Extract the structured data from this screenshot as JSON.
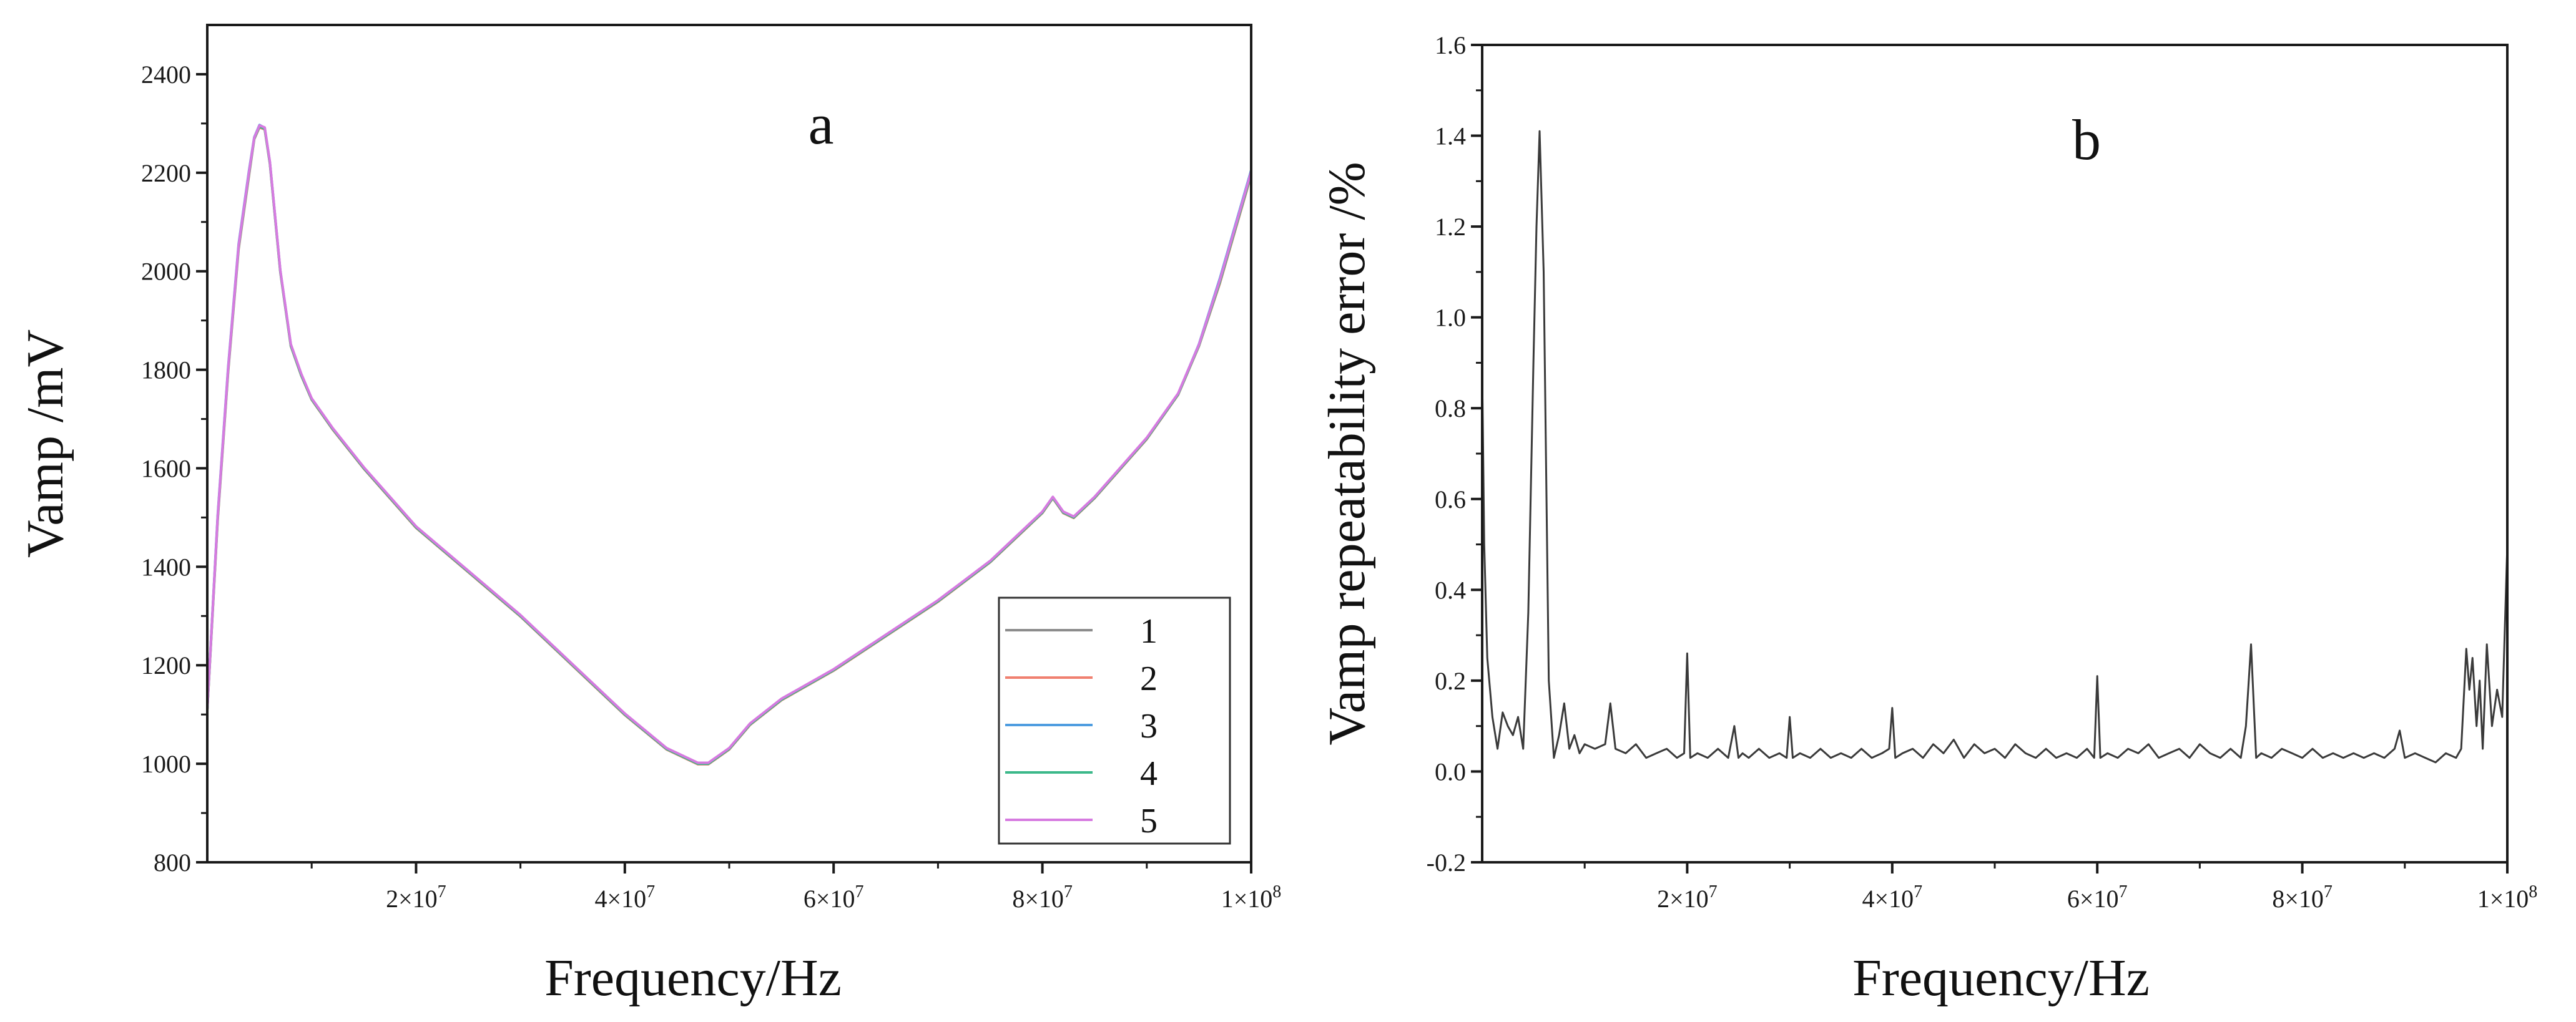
{
  "chart_data": [
    {
      "type": "line",
      "panel_label": "a",
      "title": "",
      "xlabel": "Frequency/Hz",
      "ylabel": "Vamp /mV",
      "xlim": [
        0,
        100000000
      ],
      "ylim": [
        800,
        2500
      ],
      "x_ticks": [
        {
          "value": 20000000,
          "mant": "2×10",
          "exp": "7"
        },
        {
          "value": 40000000,
          "mant": "4×10",
          "exp": "7"
        },
        {
          "value": 60000000,
          "mant": "6×10",
          "exp": "7"
        },
        {
          "value": 80000000,
          "mant": "8×10",
          "exp": "7"
        },
        {
          "value": 100000000,
          "mant": "1×10",
          "exp": "8"
        }
      ],
      "y_ticks": [
        {
          "value": 800,
          "label": "800"
        },
        {
          "value": 1000,
          "label": "1000"
        },
        {
          "value": 1200,
          "label": "1200"
        },
        {
          "value": 1400,
          "label": "1400"
        },
        {
          "value": 1600,
          "label": "1600"
        },
        {
          "value": 1800,
          "label": "1800"
        },
        {
          "value": 2000,
          "label": "2000"
        },
        {
          "value": 2200,
          "label": "2200"
        },
        {
          "value": 2400,
          "label": "2400"
        }
      ],
      "legend_position": "bottom-right",
      "x": [
        0,
        1000000,
        2000000,
        3000000,
        4000000,
        4500000,
        5000000,
        5500000,
        6000000,
        7000000,
        8000000,
        9000000,
        10000000,
        12000000,
        15000000,
        20000000,
        25000000,
        30000000,
        35000000,
        40000000,
        44000000,
        47000000,
        48000000,
        50000000,
        52000000,
        55000000,
        60000000,
        65000000,
        70000000,
        75000000,
        78000000,
        80000000,
        81000000,
        82000000,
        83000000,
        85000000,
        90000000,
        93000000,
        95000000,
        97000000,
        100000000
      ],
      "series": [
        {
          "name": "1",
          "color": "#8c8c8c",
          "values": [
            1110,
            1500,
            1800,
            2050,
            2200,
            2270,
            2295,
            2290,
            2220,
            2000,
            1850,
            1790,
            1740,
            1680,
            1600,
            1480,
            1390,
            1300,
            1200,
            1100,
            1030,
            1000,
            1000,
            1030,
            1080,
            1130,
            1190,
            1260,
            1330,
            1410,
            1470,
            1510,
            1540,
            1510,
            1500,
            1540,
            1660,
            1750,
            1850,
            1980,
            2200
          ]
        },
        {
          "name": "2",
          "color": "#f08070",
          "values": [
            1108,
            1495,
            1795,
            2045,
            2195,
            2268,
            2292,
            2288,
            2218,
            1998,
            1848,
            1788,
            1739,
            1679,
            1599,
            1479,
            1389,
            1299,
            1199,
            1099,
            1029,
            999,
            999,
            1029,
            1079,
            1129,
            1189,
            1259,
            1329,
            1409,
            1469,
            1509,
            1539,
            1509,
            1499,
            1539,
            1659,
            1749,
            1848,
            1975,
            2195
          ]
        },
        {
          "name": "3",
          "color": "#4f9de0",
          "values": [
            1112,
            1505,
            1805,
            2055,
            2205,
            2272,
            2297,
            2291,
            2221,
            2001,
            1851,
            1791,
            1741,
            1681,
            1601,
            1481,
            1391,
            1301,
            1201,
            1101,
            1031,
            1001,
            1001,
            1031,
            1081,
            1131,
            1191,
            1261,
            1331,
            1411,
            1471,
            1511,
            1541,
            1511,
            1501,
            1541,
            1661,
            1751,
            1852,
            1985,
            2205
          ]
        },
        {
          "name": "4",
          "color": "#3cb88a",
          "values": [
            1109,
            1498,
            1798,
            2048,
            2198,
            2269,
            2294,
            2289,
            2219,
            1999,
            1849,
            1789,
            1740,
            1680,
            1600,
            1480,
            1390,
            1300,
            1200,
            1100,
            1030,
            1000,
            1000,
            1030,
            1080,
            1130,
            1190,
            1260,
            1330,
            1410,
            1470,
            1510,
            1540,
            1510,
            1500,
            1540,
            1660,
            1750,
            1849,
            1978,
            2198
          ]
        },
        {
          "name": "5",
          "color": "#d67be0",
          "values": [
            1111,
            1502,
            1802,
            2052,
            2202,
            2271,
            2296,
            2292,
            2222,
            2002,
            1852,
            1792,
            1742,
            1682,
            1602,
            1482,
            1392,
            1302,
            1202,
            1102,
            1032,
            1002,
            1002,
            1032,
            1082,
            1132,
            1192,
            1262,
            1332,
            1412,
            1472,
            1512,
            1542,
            1512,
            1502,
            1542,
            1662,
            1752,
            1851,
            1982,
            2202
          ]
        }
      ]
    },
    {
      "type": "line",
      "panel_label": "b",
      "title": "",
      "xlabel": "Frequency/Hz",
      "ylabel": "Vamp repeatability error /%",
      "xlim": [
        0,
        100000000
      ],
      "ylim": [
        -0.2,
        1.6
      ],
      "x_ticks": [
        {
          "value": 20000000,
          "mant": "2×10",
          "exp": "7"
        },
        {
          "value": 40000000,
          "mant": "4×10",
          "exp": "7"
        },
        {
          "value": 60000000,
          "mant": "6×10",
          "exp": "7"
        },
        {
          "value": 80000000,
          "mant": "8×10",
          "exp": "7"
        },
        {
          "value": 100000000,
          "mant": "1×10",
          "exp": "8"
        }
      ],
      "y_ticks": [
        {
          "value": -0.2,
          "label": "-0.2"
        },
        {
          "value": 0.0,
          "label": "0.0"
        },
        {
          "value": 0.2,
          "label": "0.2"
        },
        {
          "value": 0.4,
          "label": "0.4"
        },
        {
          "value": 0.6,
          "label": "0.6"
        },
        {
          "value": 0.8,
          "label": "0.8"
        },
        {
          "value": 1.0,
          "label": "1.0"
        },
        {
          "value": 1.2,
          "label": "1.2"
        },
        {
          "value": 1.4,
          "label": "1.4"
        },
        {
          "value": 1.6,
          "label": "1.6"
        }
      ],
      "series": [
        {
          "name": "repeatability error",
          "color": "#3a3a3a",
          "x": [
            0,
            200000,
            500000,
            1000000,
            1500000,
            2000000,
            2500000,
            3000000,
            3500000,
            4000000,
            4500000,
            5000000,
            5300000,
            5600000,
            6000000,
            6500000,
            7000000,
            7500000,
            8000000,
            8500000,
            9000000,
            9500000,
            10000000,
            11000000,
            12000000,
            12500000,
            13000000,
            14000000,
            15000000,
            16000000,
            17000000,
            18000000,
            19000000,
            19700000,
            20000000,
            20300000,
            21000000,
            22000000,
            23000000,
            24000000,
            24600000,
            25000000,
            25400000,
            26000000,
            27000000,
            28000000,
            29000000,
            29700000,
            30000000,
            30300000,
            31000000,
            32000000,
            33000000,
            34000000,
            35000000,
            36000000,
            37000000,
            38000000,
            39000000,
            39700000,
            40000000,
            40300000,
            41000000,
            42000000,
            43000000,
            44000000,
            45000000,
            46000000,
            47000000,
            48000000,
            49000000,
            50000000,
            51000000,
            52000000,
            53000000,
            54000000,
            55000000,
            56000000,
            57000000,
            58000000,
            59000000,
            59700000,
            60000000,
            60300000,
            61000000,
            62000000,
            63000000,
            64000000,
            65000000,
            66000000,
            67000000,
            68000000,
            69000000,
            70000000,
            71000000,
            72000000,
            73000000,
            74000000,
            74500000,
            75000000,
            75500000,
            76000000,
            77000000,
            78000000,
            79000000,
            80000000,
            81000000,
            82000000,
            83000000,
            84000000,
            85000000,
            86000000,
            87000000,
            88000000,
            89000000,
            89500000,
            90000000,
            91000000,
            92000000,
            93000000,
            94000000,
            95000000,
            95500000,
            96000000,
            96300000,
            96600000,
            97000000,
            97300000,
            97600000,
            98000000,
            98500000,
            99000000,
            99500000,
            100000000
          ],
          "values": [
            0.88,
            0.5,
            0.25,
            0.12,
            0.05,
            0.13,
            0.1,
            0.08,
            0.12,
            0.05,
            0.35,
            0.9,
            1.2,
            1.41,
            1.1,
            0.2,
            0.03,
            0.08,
            0.15,
            0.05,
            0.08,
            0.04,
            0.06,
            0.05,
            0.06,
            0.15,
            0.05,
            0.04,
            0.06,
            0.03,
            0.04,
            0.05,
            0.03,
            0.04,
            0.26,
            0.03,
            0.04,
            0.03,
            0.05,
            0.03,
            0.1,
            0.03,
            0.04,
            0.03,
            0.05,
            0.03,
            0.04,
            0.03,
            0.12,
            0.03,
            0.04,
            0.03,
            0.05,
            0.03,
            0.04,
            0.03,
            0.05,
            0.03,
            0.04,
            0.05,
            0.14,
            0.03,
            0.04,
            0.05,
            0.03,
            0.06,
            0.04,
            0.07,
            0.03,
            0.06,
            0.04,
            0.05,
            0.03,
            0.06,
            0.04,
            0.03,
            0.05,
            0.03,
            0.04,
            0.03,
            0.05,
            0.03,
            0.21,
            0.03,
            0.04,
            0.03,
            0.05,
            0.04,
            0.06,
            0.03,
            0.04,
            0.05,
            0.03,
            0.06,
            0.04,
            0.03,
            0.05,
            0.03,
            0.1,
            0.28,
            0.03,
            0.04,
            0.03,
            0.05,
            0.04,
            0.03,
            0.05,
            0.03,
            0.04,
            0.03,
            0.04,
            0.03,
            0.04,
            0.03,
            0.05,
            0.09,
            0.03,
            0.04,
            0.03,
            0.02,
            0.04,
            0.03,
            0.05,
            0.27,
            0.18,
            0.25,
            0.1,
            0.2,
            0.05,
            0.28,
            0.1,
            0.18,
            0.12,
            0.5
          ]
        }
      ]
    }
  ]
}
